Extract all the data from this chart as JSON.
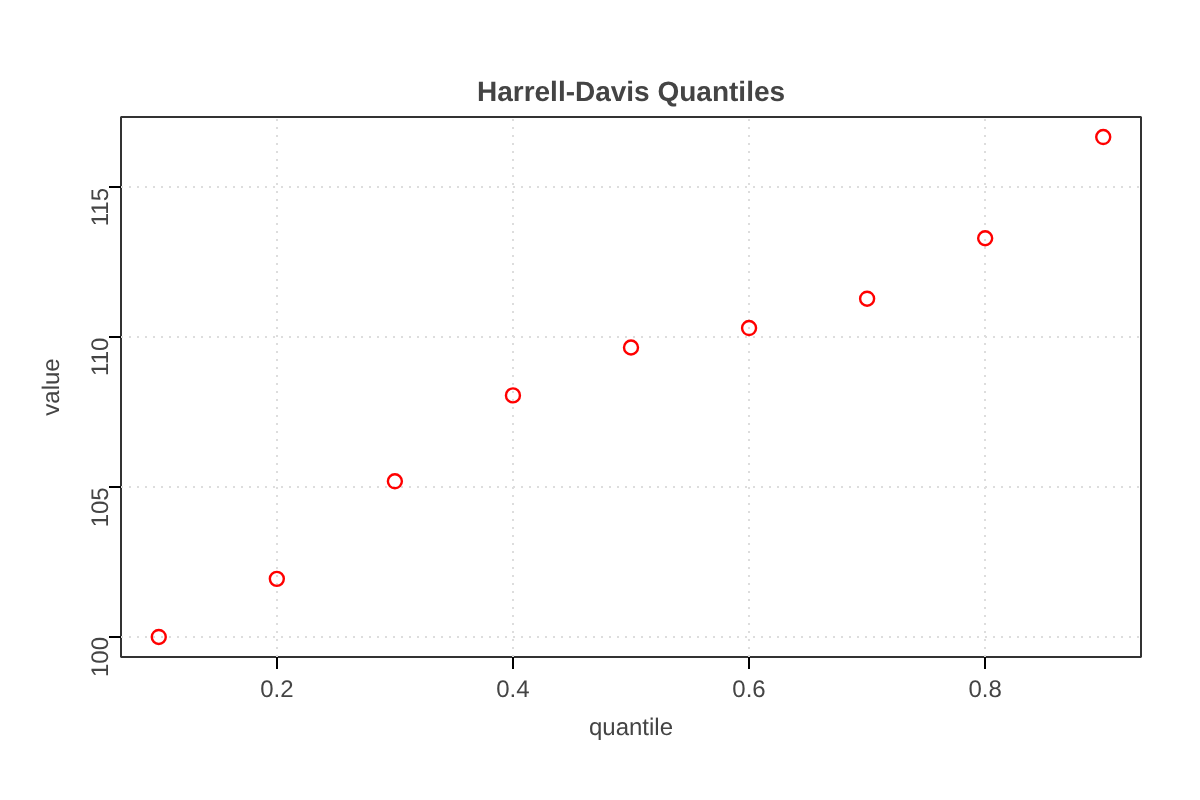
{
  "chart_data": {
    "type": "scatter",
    "title": "Harrell-Davis Quantiles",
    "xlabel": "quantile",
    "ylabel": "value",
    "x": [
      0.1,
      0.2,
      0.3,
      0.4,
      0.5,
      0.6,
      0.7,
      0.8,
      0.9
    ],
    "series": [
      {
        "color": "#ff0000",
        "values": [
          100.0,
          101.94,
          105.2,
          108.07,
          109.67,
          110.32,
          111.3,
          113.32,
          116.7
        ]
      }
    ],
    "xlim": [
      0.068,
      0.932
    ],
    "ylim": [
      99.33,
      117.37
    ],
    "xticks": [
      0.2,
      0.4,
      0.6,
      0.8
    ],
    "yticks": [
      100,
      105,
      110,
      115
    ],
    "grid": true,
    "marker": "circle"
  }
}
